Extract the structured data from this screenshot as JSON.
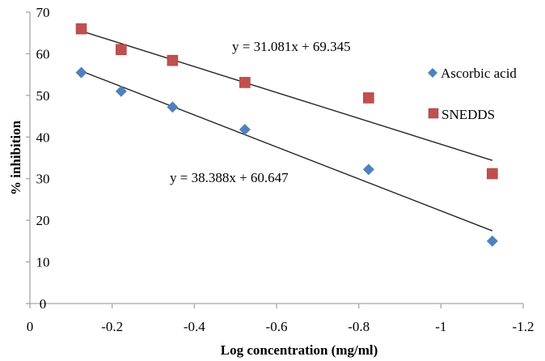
{
  "chart_data": {
    "type": "scatter",
    "title": "",
    "xlabel": "Log concentration  (mg/ml)",
    "ylabel": "% inhibition",
    "xlim": [
      0,
      -1.2
    ],
    "ylim": [
      0,
      70
    ],
    "x_ticks": [
      0,
      -0.2,
      -0.4,
      -0.6,
      -0.8,
      -1,
      -1.2
    ],
    "x_tick_labels": [
      "0",
      "-0.2",
      "-0.4",
      "-0.6",
      "-0.8",
      "-1",
      "-1.2"
    ],
    "y_ticks": [
      0,
      10,
      20,
      30,
      40,
      50,
      60,
      70
    ],
    "y_tick_labels": [
      "0",
      "10",
      "20",
      "30",
      "40",
      "50",
      "60",
      "70"
    ],
    "grid": false,
    "legend_position": "right",
    "series": [
      {
        "name": "Ascorbic acid",
        "marker": "diamond",
        "color": "#4F81BD",
        "x": [
          -0.125,
          -0.222,
          -0.347,
          -0.523,
          -0.824,
          -1.125
        ],
        "y": [
          55.5,
          51,
          47.2,
          41.8,
          32.2,
          15
        ],
        "trendline": {
          "slope": 38.388,
          "intercept": 60.647,
          "equation": "y = 38.388x + 60.647"
        }
      },
      {
        "name": "SNEDDS",
        "marker": "square",
        "color": "#C0504D",
        "x": [
          -0.125,
          -0.222,
          -0.347,
          -0.523,
          -0.824,
          -1.125
        ],
        "y": [
          66,
          61,
          58.4,
          53.1,
          49.4,
          31.2
        ],
        "trendline": {
          "slope": 31.081,
          "intercept": 69.345,
          "equation": "y = 31.081x + 69.345"
        }
      }
    ]
  }
}
